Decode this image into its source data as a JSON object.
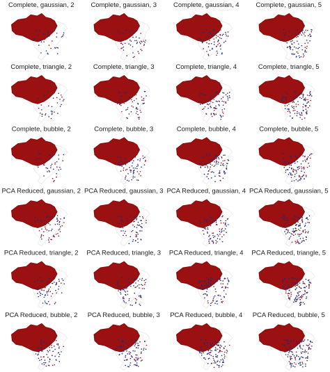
{
  "panels": [
    {
      "title": "Complete, gaussian, 2"
    },
    {
      "title": "Complete, gaussian, 3"
    },
    {
      "title": "Complete, gaussian, 4"
    },
    {
      "title": "Complete, gaussian, 5"
    },
    {
      "title": "Complete, triangle, 2"
    },
    {
      "title": "Complete, triangle, 3"
    },
    {
      "title": "Complete, triangle, 4"
    },
    {
      "title": "Complete, triangle, 5"
    },
    {
      "title": "Complete, bubble, 2"
    },
    {
      "title": "Complete, bubble, 3"
    },
    {
      "title": "Complete, bubble, 4"
    },
    {
      "title": "Complete, bubble, 5"
    },
    {
      "title": "PCA Reduced, gaussian, 2"
    },
    {
      "title": "PCA Reduced, gaussian, 3"
    },
    {
      "title": "PCA Reduced, gaussian, 4"
    },
    {
      "title": "PCA Reduced, gaussian, 5"
    },
    {
      "title": "PCA Reduced, triangle, 2"
    },
    {
      "title": "PCA Reduced, triangle, 3"
    },
    {
      "title": "PCA Reduced, triangle, 4"
    },
    {
      "title": "PCA Reduced, triangle, 5"
    },
    {
      "title": "PCA Reduced, bubble, 2"
    },
    {
      "title": "PCA Reduced, bubble, 3"
    },
    {
      "title": "PCA Reduced, bubble, 4"
    },
    {
      "title": "PCA Reduced, bubble, 5"
    }
  ]
}
